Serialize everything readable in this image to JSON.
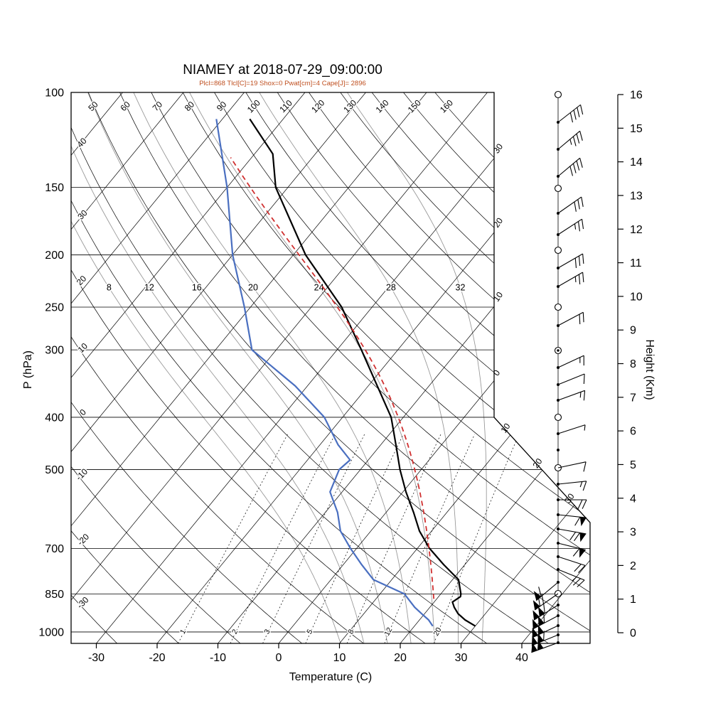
{
  "title": "NIAMEY at 2018-07-29_09:00:00",
  "subtitle": "Plcl=868 Tlcl[C]=19 Shox=0 Pwat[cm]=4 Cape[J]= 2896",
  "axes": {
    "pressure_label": "P (hPa)",
    "temp_label": "Temperature (C)",
    "height_label": "Height (Km)"
  },
  "colors": {
    "temperature": "#000000",
    "dewpoint": "#4a6fc0",
    "parcel": "#d03030",
    "moist_adiabat": "#9a9a9a",
    "grid": "#000000",
    "subtitle": "#bf4e1e"
  },
  "chart_data": {
    "type": "line",
    "variant": "skew-t-log-p-sounding",
    "station": "NIAMEY",
    "time": "2018-07-29_09:00:00",
    "title": "NIAMEY at 2018-07-29_09:00:00",
    "xlabel": "Temperature (C)",
    "ylabel": "P (hPa)",
    "ylabel_right": "Height (Km)",
    "indices": {
      "Plcl": 868,
      "Tlcl_C": 19,
      "Shox": 0,
      "Pwat_cm": 4,
      "Cape_J": 2896
    },
    "pressure_ticks": [
      100,
      150,
      200,
      250,
      300,
      400,
      500,
      700,
      850,
      1000
    ],
    "temp_ticks": [
      -30,
      -20,
      -10,
      0,
      10,
      20,
      30,
      40
    ],
    "height_ticks_km": [
      0,
      1,
      2,
      3,
      4,
      5,
      6,
      7,
      8,
      9,
      10,
      11,
      12,
      13,
      14,
      15,
      16
    ],
    "pressure_range": [
      100,
      1050
    ],
    "isotherm_range": {
      "min": -120,
      "max": 40,
      "step": 10
    },
    "dry_adiabat_range": {
      "min": -30,
      "max": 160,
      "step": 10
    },
    "dry_adiabat_labels_top": [
      50,
      60,
      70,
      80,
      90,
      100,
      110,
      120,
      130,
      140,
      150,
      160
    ],
    "dry_adiabat_labels_left": [
      40,
      30,
      20,
      10,
      0,
      -10,
      -20,
      -30
    ],
    "moist_adiabat_values": [
      8,
      12,
      16,
      20,
      24,
      28,
      32
    ],
    "mixing_ratio_values": [
      1,
      2,
      3,
      5,
      8,
      12,
      20
    ],
    "right_edge_isotherm_labels": [
      {
        "t": -30,
        "label": "30"
      },
      {
        "t": -20,
        "label": "20"
      },
      {
        "t": -10,
        "label": "10"
      },
      {
        "t": 0,
        "label": "0"
      }
    ],
    "diagonal_isotherm_labels": [
      {
        "t": 10,
        "label": "10"
      },
      {
        "t": 20,
        "label": "20"
      },
      {
        "t": 30,
        "label": "30"
      }
    ],
    "series": [
      {
        "name": "temperature",
        "color": "#000000",
        "style": "solid",
        "points_p_T": [
          [
            975,
            30
          ],
          [
            950,
            27.5
          ],
          [
            925,
            25.5
          ],
          [
            900,
            24
          ],
          [
            880,
            23
          ],
          [
            860,
            23.6
          ],
          [
            850,
            23.3
          ],
          [
            800,
            21
          ],
          [
            750,
            16.5
          ],
          [
            700,
            12
          ],
          [
            650,
            8
          ],
          [
            600,
            4.5
          ],
          [
            550,
            0.5
          ],
          [
            500,
            -3.5
          ],
          [
            450,
            -7.5
          ],
          [
            400,
            -12
          ],
          [
            350,
            -18.5
          ],
          [
            300,
            -26
          ],
          [
            250,
            -35
          ],
          [
            200,
            -48
          ],
          [
            150,
            -62
          ],
          [
            130,
            -67
          ],
          [
            112,
            -75.5
          ]
        ]
      },
      {
        "name": "dewpoint",
        "color": "#4a6fc0",
        "style": "solid",
        "points_p_T": [
          [
            975,
            23
          ],
          [
            950,
            21.5
          ],
          [
            925,
            19.5
          ],
          [
            900,
            17.5
          ],
          [
            850,
            14
          ],
          [
            800,
            7
          ],
          [
            750,
            3
          ],
          [
            700,
            -1
          ],
          [
            650,
            -5
          ],
          [
            600,
            -8
          ],
          [
            550,
            -12
          ],
          [
            500,
            -13.5
          ],
          [
            480,
            -13
          ],
          [
            450,
            -17
          ],
          [
            400,
            -23
          ],
          [
            350,
            -32
          ],
          [
            300,
            -44
          ],
          [
            250,
            -51
          ],
          [
            200,
            -60
          ],
          [
            150,
            -70
          ],
          [
            112,
            -81
          ]
        ]
      },
      {
        "name": "parcel",
        "color": "#d03030",
        "style": "dashed",
        "start": {
          "p": 868,
          "T": 19.5
        },
        "top_p": 132
      }
    ],
    "wind_barbs": [
      {
        "y": 133,
        "g": "circle"
      },
      {
        "y": 172,
        "g": "dot",
        "a": 52,
        "f": "ffff"
      },
      {
        "y": 210,
        "g": "dot",
        "a": 50,
        "f": "fffh"
      },
      {
        "y": 248,
        "g": "dot",
        "a": 50,
        "f": "ffff"
      },
      {
        "y": 265,
        "g": "circle"
      },
      {
        "y": 300,
        "g": "dot",
        "a": 55,
        "f": "fff"
      },
      {
        "y": 330,
        "g": "dot",
        "a": 57,
        "f": "ffh"
      },
      {
        "y": 352,
        "g": "circle"
      },
      {
        "y": 377,
        "g": "dot",
        "a": 60,
        "f": "fff"
      },
      {
        "y": 403,
        "g": "dot",
        "a": 60,
        "f": "ffh"
      },
      {
        "y": 432,
        "g": "circle"
      },
      {
        "y": 458,
        "g": "dot",
        "a": 62,
        "f": "ff"
      },
      {
        "y": 493,
        "g": "dblcircle"
      },
      {
        "y": 517,
        "g": "dot",
        "a": 65,
        "f": "fh"
      },
      {
        "y": 541,
        "g": "dot",
        "a": 68,
        "f": "f"
      },
      {
        "y": 563,
        "g": "dot",
        "a": 70,
        "f": "fh"
      },
      {
        "y": 587,
        "g": "circle"
      },
      {
        "y": 610,
        "g": "dot",
        "a": 72,
        "f": "h"
      },
      {
        "y": 633,
        "g": "dot"
      },
      {
        "y": 658,
        "g": "circle",
        "a": 78,
        "f": "f"
      },
      {
        "y": 681,
        "g": "dot",
        "a": 84,
        "f": "fh"
      },
      {
        "y": 703,
        "g": "dot",
        "a": 90,
        "f": "ff"
      },
      {
        "y": 724,
        "g": "dot",
        "a": 96,
        "f": "pf"
      },
      {
        "y": 744,
        "g": "dot",
        "a": 100,
        "f": "pff"
      },
      {
        "y": 764,
        "g": "dot",
        "a": 104,
        "f": "pf"
      },
      {
        "y": 783,
        "g": "dot",
        "a": 108,
        "f": "ff"
      },
      {
        "y": 801,
        "g": "dot",
        "a": 112,
        "f": "ffh"
      },
      {
        "y": 819,
        "g": "dot",
        "a": 230,
        "f": "pf"
      },
      {
        "y": 835,
        "g": "circle",
        "a": 235,
        "f": "pff"
      },
      {
        "y": 851,
        "g": "dot",
        "a": 238,
        "f": "ppf"
      },
      {
        "y": 866,
        "g": "dot",
        "a": 242,
        "f": "ppf"
      },
      {
        "y": 880,
        "g": "dot",
        "a": 245,
        "f": "pp"
      },
      {
        "y": 893,
        "g": "dot",
        "a": 248,
        "f": "ppf"
      },
      {
        "y": 904,
        "g": "dot",
        "a": 250,
        "f": "pp"
      }
    ]
  }
}
